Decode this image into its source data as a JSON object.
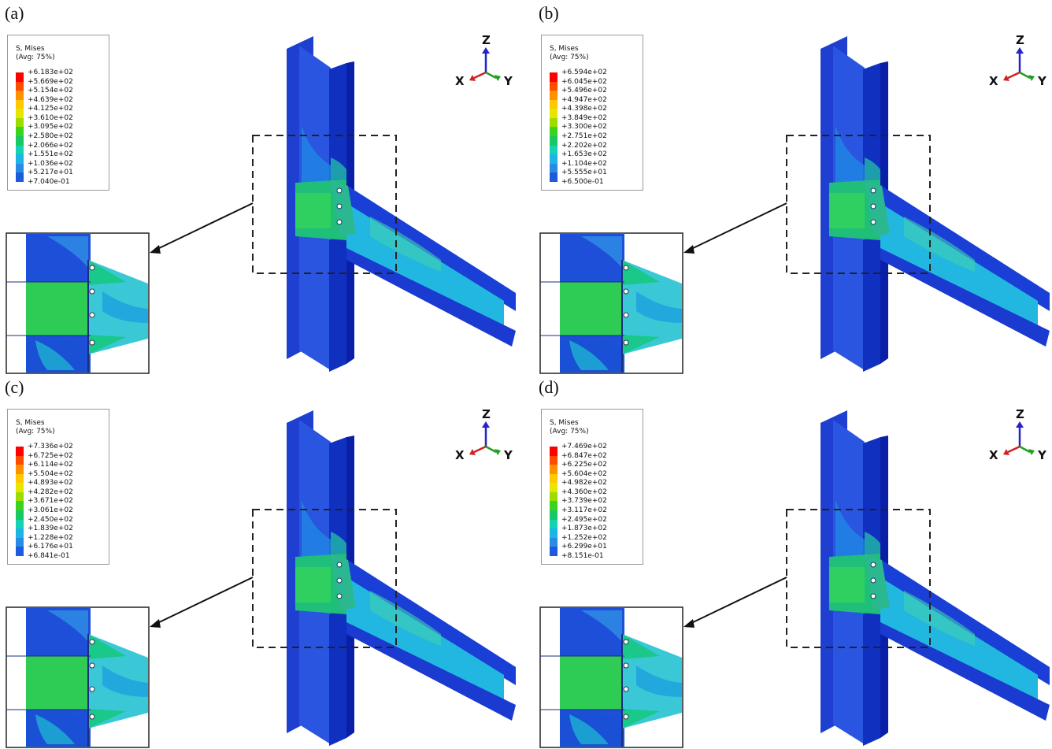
{
  "legend_title": [
    "S, Mises",
    "(Avg: 75%)"
  ],
  "axes": {
    "z": "Z",
    "x": "X",
    "y": "Y"
  },
  "panels": [
    {
      "label": "(a)",
      "values": [
        "+6.183e+02",
        "+5.669e+02",
        "+5.154e+02",
        "+4.639e+02",
        "+4.125e+02",
        "+3.610e+02",
        "+3.095e+02",
        "+2.580e+02",
        "+2.066e+02",
        "+1.551e+02",
        "+1.036e+02",
        "+5.217e+01",
        "+7.040e-01"
      ]
    },
    {
      "label": "(b)",
      "values": [
        "+6.594e+02",
        "+6.045e+02",
        "+5.496e+02",
        "+4.947e+02",
        "+4.398e+02",
        "+3.849e+02",
        "+3.300e+02",
        "+2.751e+02",
        "+2.202e+02",
        "+1.653e+02",
        "+1.104e+02",
        "+5.555e+01",
        "+6.500e-01"
      ]
    },
    {
      "label": "(c)",
      "values": [
        "+7.336e+02",
        "+6.725e+02",
        "+6.114e+02",
        "+5.504e+02",
        "+4.893e+02",
        "+4.282e+02",
        "+3.671e+02",
        "+3.061e+02",
        "+2.450e+02",
        "+1.839e+02",
        "+1.228e+02",
        "+6.176e+01",
        "+6.841e-01"
      ]
    },
    {
      "label": "(d)",
      "values": [
        "+7.469e+02",
        "+6.847e+02",
        "+6.225e+02",
        "+5.604e+02",
        "+4.982e+02",
        "+4.360e+02",
        "+3.739e+02",
        "+3.117e+02",
        "+2.495e+02",
        "+1.873e+02",
        "+1.252e+02",
        "+6.299e+01",
        "+8.151e-01"
      ]
    }
  ],
  "legend_colors": [
    "#ff0000",
    "#ff4b00",
    "#ff9100",
    "#ffc800",
    "#e6e600",
    "#9cdc00",
    "#3cd21e",
    "#19c864",
    "#14d2b4",
    "#1eb4e6",
    "#288ce6",
    "#1e5adc",
    "#0a14c8"
  ]
}
